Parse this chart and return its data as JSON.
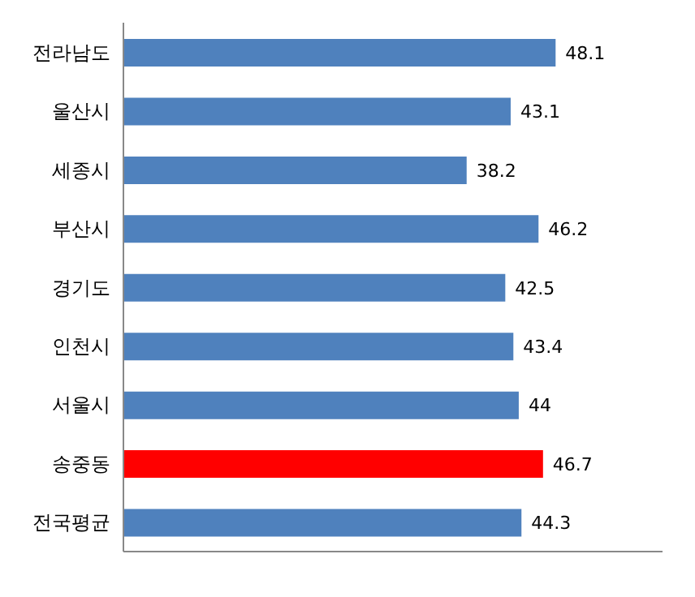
{
  "chart_data": {
    "type": "bar",
    "orientation": "horizontal",
    "categories": [
      "전라남도",
      "울산시",
      "세종시",
      "부산시",
      "경기도",
      "인천시",
      "서울시",
      "송중동",
      "전국평균"
    ],
    "values": [
      48.1,
      43.1,
      38.2,
      46.2,
      42.5,
      43.4,
      44,
      46.7,
      44.3
    ],
    "colors": [
      "#4f81bd",
      "#4f81bd",
      "#4f81bd",
      "#4f81bd",
      "#4f81bd",
      "#4f81bd",
      "#4f81bd",
      "#ff0000",
      "#4f81bd"
    ],
    "xlim": [
      0,
      60
    ],
    "tick_labels": "y",
    "data_labels": true
  }
}
